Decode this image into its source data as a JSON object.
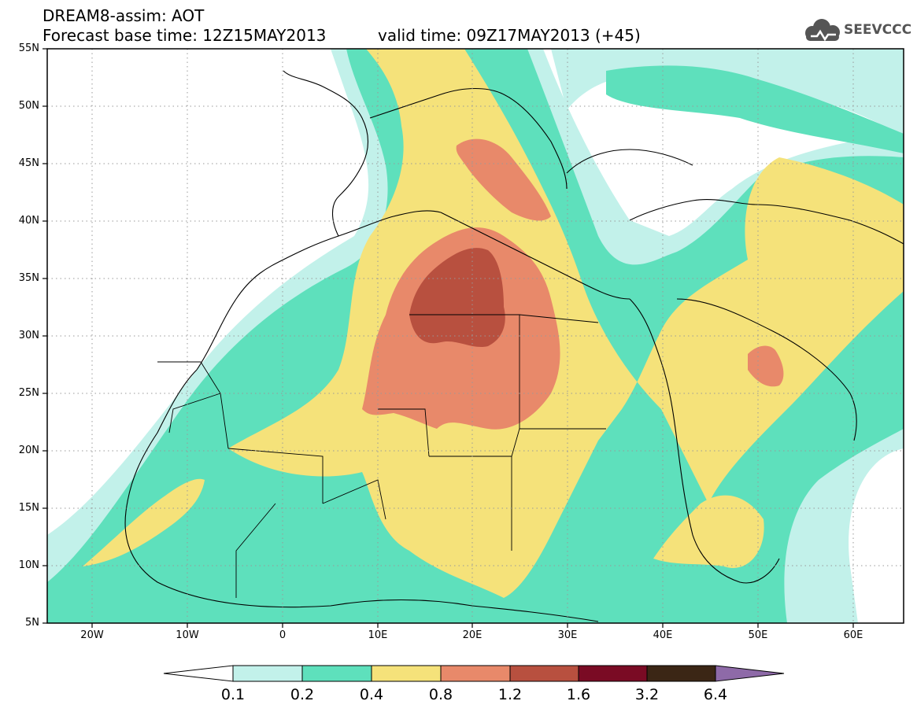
{
  "header": {
    "line1": "DREAM8-assim: AOT",
    "line2_left": "Forecast base time: 12Z15MAY2013",
    "line2_right": "valid time: 09Z17MAY2013 (+45)"
  },
  "logo": {
    "text": "SEEVCCC",
    "icon": "cloud-icon"
  },
  "map": {
    "lat_labels": [
      "55N",
      "50N",
      "45N",
      "40N",
      "35N",
      "30N",
      "25N",
      "20N",
      "15N",
      "10N",
      "5N"
    ],
    "lon_labels": [
      "20W",
      "10W",
      "0",
      "10E",
      "20E",
      "30E",
      "40E",
      "50E",
      "60E"
    ],
    "lat_range": [
      5,
      55
    ],
    "lon_range": [
      -25,
      65
    ],
    "grid": "dotted"
  },
  "colorbar": {
    "labels": [
      "0.1",
      "0.2",
      "0.4",
      "0.8",
      "1.2",
      "1.6",
      "3.2",
      "6.4"
    ],
    "colors": {
      "c01": "#c2f1ea",
      "c02": "#5ee0bc",
      "c04": "#f5e27a",
      "c08": "#e8896a",
      "c12": "#b8503f",
      "c16": "#7a0b24",
      "c32": "#3b2615",
      "c64": "#8e6aa8"
    }
  }
}
